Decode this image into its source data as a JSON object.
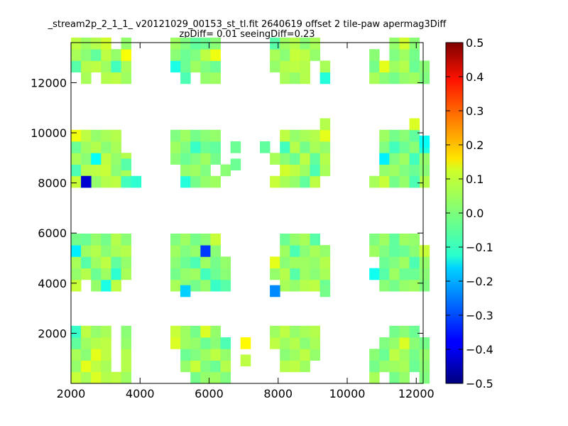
{
  "chart_data": {
    "type": "heatmap",
    "title": "_stream2p_2_1_1_ v20121029_00153_st_tl.fit 2640619 offset 2 tile-paw apermag3Diff",
    "subtitle": "zpDiff= 0.01 seeingDiff=0.23",
    "xlabel": "",
    "ylabel": "",
    "xlim": [
      2000,
      12200
    ],
    "ylim": [
      0,
      13600
    ],
    "x_ticks": [
      {
        "value": 2000,
        "label": "2000"
      },
      {
        "value": 4000,
        "label": "4000"
      },
      {
        "value": 6000,
        "label": "6000"
      },
      {
        "value": 8000,
        "label": "8000"
      },
      {
        "value": 10000,
        "label": "10000"
      },
      {
        "value": 12000,
        "label": "12000"
      }
    ],
    "y_ticks": [
      {
        "value": 2000,
        "label": "2000"
      },
      {
        "value": 4000,
        "label": "4000"
      },
      {
        "value": 6000,
        "label": "6000"
      },
      {
        "value": 8000,
        "label": "8000"
      },
      {
        "value": 10000,
        "label": "10000"
      },
      {
        "value": 12000,
        "label": "12000"
      }
    ],
    "cell_width": 290,
    "cell_height": 460,
    "colormap": "jet",
    "clim": [
      -0.5,
      0.5
    ],
    "colorbar": {
      "placement": "right",
      "ticks": [
        {
          "value": 0.5,
          "label": "0.5"
        },
        {
          "value": 0.4,
          "label": "0.4"
        },
        {
          "value": 0.3,
          "label": "0.3"
        },
        {
          "value": 0.2,
          "label": "0.2"
        },
        {
          "value": 0.1,
          "label": "0.1"
        },
        {
          "value": 0.0,
          "label": "0.0"
        },
        {
          "value": -0.1,
          "label": "−0.1"
        },
        {
          "value": -0.2,
          "label": "−0.2"
        },
        {
          "value": -0.3,
          "label": "−0.3"
        },
        {
          "value": -0.4,
          "label": "−0.4"
        },
        {
          "value": -0.5,
          "label": "−0.5"
        }
      ]
    },
    "x_columns": [
      [
        2000,
        2290,
        2580,
        2870,
        3160,
        3450
      ],
      [
        4880,
        5170,
        5460,
        5750,
        6040,
        6330
      ],
      [
        7760,
        8050,
        8340,
        8630,
        8920,
        9210
      ],
      [
        10640,
        10930,
        11220,
        11510,
        11800,
        12090
      ]
    ],
    "y_rows": [
      [
        0,
        460,
        920,
        1380,
        1840
      ],
      [
        3680,
        4140,
        4600,
        5060,
        5520
      ],
      [
        7820,
        8280,
        8740,
        9200,
        9660
      ],
      [
        11960,
        12420,
        12880,
        13340
      ]
    ],
    "stack_pattern": [
      [
        0.07,
        0.04,
        0.02,
        0.05,
        0.06,
        0.03
      ],
      [
        0.02,
        0.05,
        0.06,
        0.03,
        0.01,
        0.04
      ],
      [
        0.04,
        0.01,
        0.03,
        0.06,
        0.02,
        0.05
      ],
      [
        0.06,
        0.03,
        0.05,
        0.01,
        0.04,
        0.02
      ],
      [
        0.03,
        0.06,
        0.02,
        0.04,
        0.05,
        0.01
      ]
    ],
    "missing": [
      [
        0,
        4,
        0,
        1
      ],
      [
        0,
        4,
        0,
        2
      ],
      [
        0,
        4,
        0,
        3
      ],
      [
        0,
        4,
        0,
        4
      ],
      [
        0,
        1,
        1,
        0
      ],
      [
        0,
        5,
        1,
        0
      ],
      [
        0,
        0,
        3,
        0
      ],
      [
        0,
        2,
        3,
        0
      ],
      [
        0,
        5,
        2,
        3
      ],
      [
        0,
        5,
        2,
        4
      ],
      [
        0,
        4,
        3,
        3
      ],
      [
        0,
        4,
        3,
        4
      ],
      [
        1,
        0,
        0,
        0
      ],
      [
        1,
        0,
        0,
        1
      ],
      [
        1,
        0,
        0,
        2
      ],
      [
        1,
        1,
        0,
        0
      ],
      [
        1,
        0,
        2,
        0
      ],
      [
        1,
        0,
        2,
        1
      ],
      [
        1,
        0,
        3,
        0
      ],
      [
        1,
        5,
        1,
        3
      ],
      [
        1,
        5,
        1,
        4
      ],
      [
        1,
        5,
        2,
        0
      ],
      [
        1,
        5,
        2,
        2
      ],
      [
        1,
        5,
        2,
        3
      ],
      [
        1,
        5,
        3,
        0
      ],
      [
        1,
        5,
        3,
        1
      ],
      [
        1,
        5,
        3,
        2
      ],
      [
        1,
        5,
        3,
        3
      ],
      [
        1,
        2,
        3,
        0
      ],
      [
        1,
        4,
        2,
        1
      ],
      [
        1,
        5,
        2,
        4
      ],
      [
        1,
        5,
        3,
        4
      ],
      [
        1,
        5,
        0,
        4
      ],
      [
        2,
        0,
        1,
        0
      ],
      [
        2,
        0,
        3,
        0
      ],
      [
        2,
        0,
        2,
        1
      ],
      [
        2,
        0,
        2,
        3
      ],
      [
        2,
        0,
        2,
        4
      ],
      [
        2,
        0,
        1,
        3
      ],
      [
        2,
        0,
        1,
        4
      ],
      [
        2,
        5,
        1,
        4
      ],
      [
        2,
        5,
        3,
        2
      ],
      [
        2,
        5,
        3,
        3
      ],
      [
        2,
        5,
        2,
        0
      ],
      [
        2,
        4,
        3,
        0
      ],
      [
        2,
        4,
        3,
        1
      ],
      [
        2,
        5,
        0,
        3
      ],
      [
        2,
        5,
        0,
        4
      ],
      [
        2,
        0,
        0,
        0
      ],
      [
        2,
        0,
        0,
        1
      ],
      [
        2,
        0,
        0,
        2
      ],
      [
        2,
        1,
        0,
        0
      ],
      [
        2,
        2,
        0,
        0
      ],
      [
        2,
        3,
        0,
        0
      ],
      [
        2,
        4,
        0,
        0
      ],
      [
        2,
        4,
        0,
        1
      ],
      [
        2,
        5,
        0,
        0
      ],
      [
        2,
        5,
        0,
        1
      ],
      [
        2,
        5,
        0,
        2
      ],
      [
        3,
        1,
        0,
        0
      ],
      [
        3,
        4,
        0,
        0
      ],
      [
        3,
        0,
        0,
        4
      ],
      [
        3,
        1,
        0,
        4
      ],
      [
        3,
        0,
        1,
        2
      ],
      [
        3,
        0,
        3,
        3
      ],
      [
        3,
        1,
        3,
        2
      ],
      [
        3,
        1,
        3,
        3
      ],
      [
        3,
        1,
        3,
        4
      ],
      [
        3,
        0,
        2,
        4
      ],
      [
        3,
        5,
        1,
        4
      ],
      [
        3,
        5,
        0,
        4
      ],
      [
        3,
        5,
        2,
        4
      ],
      [
        3,
        5,
        3,
        3
      ],
      [
        3,
        5,
        3,
        2
      ],
      [
        3,
        0,
        0,
        3
      ],
      [
        3,
        0,
        1,
        0
      ],
      [
        3,
        0,
        2,
        1
      ],
      [
        3,
        0,
        2,
        2
      ],
      [
        3,
        0,
        2,
        3
      ],
      [
        3,
        5,
        3,
        4
      ]
    ],
    "special": [
      [
        0,
        0,
        2,
        4,
        0.11
      ],
      [
        0,
        2,
        1,
        1,
        -0.02
      ],
      [
        0,
        3,
        1,
        4,
        -0.01
      ],
      [
        0,
        5,
        1,
        3,
        0.05
      ],
      [
        0,
        1,
        0,
        1,
        0.1
      ],
      [
        0,
        2,
        0,
        0,
        0.09
      ],
      [
        0,
        3,
        0,
        3,
        0.06
      ],
      [
        0,
        0,
        3,
        1,
        -0.04
      ],
      [
        0,
        2,
        3,
        2,
        -0.03
      ],
      [
        0,
        3,
        3,
        3,
        0.08
      ],
      [
        0,
        4,
        3,
        1,
        -0.06
      ],
      [
        0,
        0,
        0,
        4,
        -0.07
      ],
      [
        0,
        3,
        1,
        0,
        -0.1
      ],
      [
        0,
        4,
        1,
        1,
        -0.08
      ],
      [
        0,
        5,
        3,
        2,
        0.12
      ],
      [
        0,
        2,
        0,
        2,
        0.1
      ],
      [
        0,
        1,
        1,
        4,
        -0.02
      ],
      [
        0,
        3,
        2,
        1,
        0.07
      ],
      [
        0,
        0,
        1,
        3,
        -0.14
      ],
      [
        0,
        0,
        2,
        1,
        -0.05
      ],
      [
        0,
        1,
        2,
        0,
        -0.06
      ],
      [
        0,
        2,
        2,
        2,
        -0.12
      ],
      [
        0,
        5,
        2,
        0,
        -0.06
      ],
      [
        0,
        0,
        0,
        3,
        -0.03
      ],
      [
        0,
        1,
        3,
        4,
        -0.02
      ],
      [
        0,
        1,
        1,
        2,
        -0.04
      ],
      [
        0,
        4,
        1,
        2,
        -0.03
      ],
      [
        0,
        0,
        1,
        4,
        -0.01
      ],
      [
        0,
        5,
        1,
        2,
        0.02
      ],
      [
        0,
        4,
        0,
        2,
        0.06
      ],
      [
        0,
        5,
        0,
        1,
        0.05
      ],
      [
        0,
        3,
        0,
        1,
        0.04
      ],
      [
        0,
        0,
        2,
        3,
        -0.02
      ],
      [
        1,
        0,
        0,
        3,
        0.09
      ],
      [
        1,
        3,
        1,
        3,
        -0.32
      ],
      [
        1,
        4,
        1,
        0,
        -0.07
      ],
      [
        1,
        1,
        3,
        1,
        -0.02
      ],
      [
        1,
        1,
        2,
        0,
        -0.09
      ],
      [
        1,
        1,
        0,
        0,
        -0.12
      ],
      [
        1,
        0,
        3,
        4,
        0.08
      ],
      [
        1,
        5,
        0,
        3,
        -0.05
      ],
      [
        1,
        4,
        3,
        2,
        0.11
      ],
      [
        1,
        0,
        3,
        1,
        -0.1
      ],
      [
        1,
        5,
        1,
        0,
        -0.04
      ],
      [
        1,
        2,
        3,
        3,
        -0.03
      ],
      [
        1,
        3,
        3,
        2,
        0.06
      ],
      [
        1,
        3,
        1,
        1,
        -0.06
      ],
      [
        1,
        1,
        2,
        2,
        -0.02
      ],
      [
        1,
        4,
        2,
        3,
        -0.03
      ],
      [
        1,
        0,
        0,
        4,
        0.07
      ],
      [
        1,
        1,
        0,
        3,
        0.03
      ],
      [
        1,
        3,
        0,
        4,
        0.09
      ],
      [
        1,
        2,
        1,
        2,
        -0.05
      ],
      [
        1,
        4,
        3,
        4,
        -0.06
      ],
      [
        1,
        2,
        2,
        3,
        -0.07
      ],
      [
        1,
        1,
        3,
        0,
        -0.05
      ],
      [
        1,
        2,
        0,
        1,
        0.07
      ],
      [
        1,
        4,
        0,
        2,
        0.06
      ],
      [
        1,
        5,
        0,
        1,
        0.05
      ],
      [
        1,
        4,
        1,
        4,
        0.07
      ],
      [
        2,
        5,
        2,
        4,
        0.1
      ],
      [
        2,
        2,
        1,
        3,
        -0.05
      ],
      [
        2,
        2,
        3,
        2,
        0.07
      ],
      [
        2,
        4,
        1,
        4,
        -0.04
      ],
      [
        2,
        3,
        2,
        0,
        -0.03
      ],
      [
        2,
        1,
        2,
        3,
        -0.06
      ],
      [
        2,
        2,
        2,
        2,
        -0.02
      ],
      [
        2,
        4,
        2,
        1,
        -0.05
      ],
      [
        2,
        5,
        1,
        0,
        -0.02
      ],
      [
        2,
        3,
        3,
        1,
        0.05
      ],
      [
        2,
        1,
        2,
        1,
        0.08
      ],
      [
        2,
        5,
        3,
        0,
        -0.09
      ],
      [
        2,
        2,
        3,
        1,
        0.06
      ],
      [
        2,
        0,
        3,
        3,
        -0.04
      ],
      [
        2,
        4,
        2,
        2,
        -0.03
      ],
      [
        2,
        3,
        1,
        2,
        0.03
      ],
      [
        2,
        0,
        1,
        2,
        0.1
      ],
      [
        2,
        3,
        2,
        3,
        -0.01
      ],
      [
        2,
        1,
        1,
        4,
        -0.02
      ],
      [
        2,
        2,
        1,
        1,
        -0.04
      ],
      [
        3,
        1,
        2,
        2,
        -0.14
      ],
      [
        3,
        2,
        2,
        3,
        -0.06
      ],
      [
        3,
        2,
        1,
        4,
        -0.03
      ],
      [
        3,
        3,
        0,
        3,
        0.09
      ],
      [
        3,
        1,
        3,
        1,
        0.1
      ],
      [
        3,
        1,
        2,
        0,
        0.07
      ],
      [
        3,
        0,
        3,
        4,
        0.06
      ],
      [
        3,
        5,
        1,
        3,
        0.07
      ],
      [
        3,
        5,
        2,
        3,
        -0.1
      ],
      [
        3,
        4,
        2,
        2,
        -0.06
      ],
      [
        3,
        5,
        2,
        0,
        0.05
      ],
      [
        3,
        2,
        1,
        3,
        -0.03
      ],
      [
        3,
        4,
        0,
        4,
        -0.02
      ],
      [
        3,
        3,
        0,
        1,
        0.04
      ],
      [
        3,
        1,
        1,
        1,
        -0.04
      ],
      [
        3,
        2,
        0,
        2,
        0.06
      ],
      [
        3,
        3,
        3,
        3,
        0.08
      ],
      [
        3,
        4,
        1,
        2,
        -0.05
      ],
      [
        3,
        3,
        1,
        1,
        -0.02
      ],
      [
        3,
        4,
        2,
        4,
        -0.03
      ],
      [
        3,
        4,
        3,
        4,
        0.07
      ],
      [
        3,
        0,
        1,
        1,
        -0.11
      ],
      [
        3,
        2,
        3,
        4,
        0.04
      ],
      [
        3,
        3,
        1,
        4,
        0.03
      ],
      [
        3,
        3,
        3,
        1,
        0.05
      ]
    ],
    "extra_cells": [
      [
        5165,
        3460,
        -0.17
      ],
      [
        7760,
        3460,
        -0.24
      ],
      [
        9210,
        3460,
        -0.01
      ],
      [
        2290,
        7820,
        -0.42
      ],
      [
        3740,
        7820,
        -0.08
      ],
      [
        3450,
        8510,
        -0.04
      ],
      [
        11800,
        7820,
        -0.05
      ],
      [
        12090,
        9430,
        -0.12
      ],
      [
        9210,
        10120,
        0.05
      ],
      [
        11800,
        10120,
        0.09
      ],
      [
        6910,
        1380,
        0.13
      ],
      [
        6910,
        690,
        0.06
      ],
      [
        6620,
        8510,
        -0.02
      ],
      [
        6620,
        9200,
        -0.02
      ],
      [
        7470,
        9200,
        -0.03
      ]
    ]
  }
}
